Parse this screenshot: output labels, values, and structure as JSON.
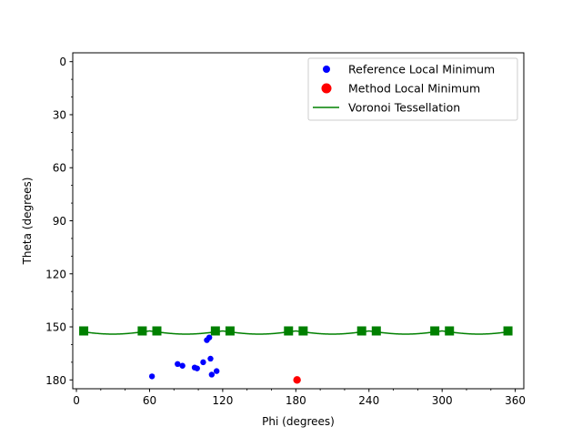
{
  "chart_data": {
    "type": "scatter",
    "xlabel": "Phi (degrees)",
    "ylabel": "Theta (degrees)",
    "xlim": [
      -3,
      367
    ],
    "ylim": [
      185,
      -5
    ],
    "y_inverted": true,
    "xticks": [
      0,
      60,
      120,
      180,
      240,
      300,
      360
    ],
    "yticks": [
      0,
      30,
      60,
      90,
      120,
      150,
      180
    ],
    "grid": false,
    "legend_position": "upper right",
    "legend": [
      {
        "label": "Reference Local Minimum",
        "color": "#0000ff",
        "marker": "circle"
      },
      {
        "label": "Method Local Minimum",
        "color": "#ff0000",
        "marker": "circle"
      },
      {
        "label": "Voronoi Tessellation",
        "color": "#008000",
        "marker": "line"
      }
    ],
    "series": [
      {
        "name": "Reference Local Minimum",
        "color": "#0000ff",
        "points": [
          [
            62,
            178
          ],
          [
            83,
            171
          ],
          [
            87,
            172
          ],
          [
            97,
            173
          ],
          [
            99,
            173.5
          ],
          [
            104,
            170
          ],
          [
            107,
            157.5
          ],
          [
            109,
            156
          ],
          [
            110,
            168
          ],
          [
            111,
            177
          ],
          [
            115,
            175
          ]
        ]
      },
      {
        "name": "Method Local Minimum",
        "color": "#ff0000",
        "points": [
          [
            181,
            180
          ]
        ]
      },
      {
        "name": "Voronoi Tessellation",
        "color": "#008000",
        "curve_theta": 152.3,
        "curve_sag": 1.8,
        "curve_period": 60,
        "markers_x": [
          6,
          54,
          66,
          114,
          126,
          174,
          186,
          234,
          246,
          294,
          306,
          354
        ],
        "markers_theta": 152.3
      }
    ]
  }
}
